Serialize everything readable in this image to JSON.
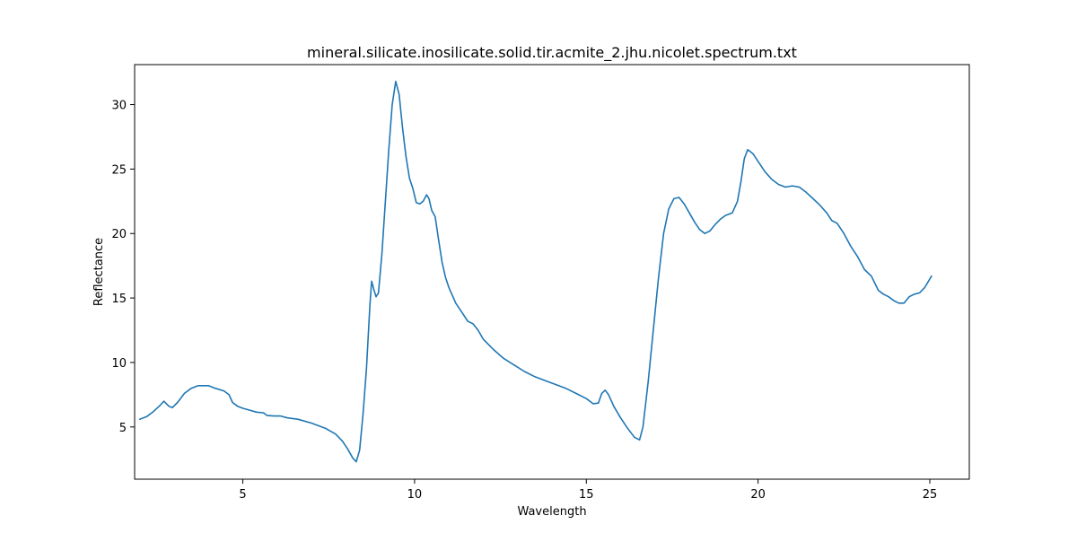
{
  "chart_data": {
    "type": "line",
    "title": "mineral.silicate.inosilicate.solid.tir.acmite_2.jhu.nicolet.spectrum.txt",
    "xlabel": "Wavelength",
    "ylabel": "Reflectance",
    "xlim": [
      1.85,
      26.15
    ],
    "ylim": [
      0.95,
      33.1
    ],
    "xticks": [
      5,
      10,
      15,
      20,
      25
    ],
    "yticks": [
      5,
      10,
      15,
      20,
      25,
      30
    ],
    "grid": false,
    "line_color": "#1f77b4",
    "series": [
      {
        "points": [
          [
            2.0,
            5.6
          ],
          [
            2.2,
            5.8
          ],
          [
            2.4,
            6.2
          ],
          [
            2.6,
            6.7
          ],
          [
            2.7,
            7.0
          ],
          [
            2.85,
            6.6
          ],
          [
            2.95,
            6.5
          ],
          [
            3.1,
            6.9
          ],
          [
            3.3,
            7.6
          ],
          [
            3.5,
            8.0
          ],
          [
            3.7,
            8.2
          ],
          [
            4.0,
            8.2
          ],
          [
            4.2,
            8.0
          ],
          [
            4.45,
            7.8
          ],
          [
            4.6,
            7.5
          ],
          [
            4.7,
            6.9
          ],
          [
            4.85,
            6.6
          ],
          [
            5.0,
            6.45
          ],
          [
            5.2,
            6.3
          ],
          [
            5.4,
            6.15
          ],
          [
            5.6,
            6.1
          ],
          [
            5.7,
            5.9
          ],
          [
            5.9,
            5.85
          ],
          [
            6.1,
            5.85
          ],
          [
            6.3,
            5.7
          ],
          [
            6.6,
            5.6
          ],
          [
            7.0,
            5.3
          ],
          [
            7.4,
            4.9
          ],
          [
            7.7,
            4.45
          ],
          [
            7.9,
            3.9
          ],
          [
            8.05,
            3.3
          ],
          [
            8.2,
            2.6
          ],
          [
            8.3,
            2.3
          ],
          [
            8.4,
            3.2
          ],
          [
            8.5,
            6.0
          ],
          [
            8.6,
            9.5
          ],
          [
            8.7,
            14.5
          ],
          [
            8.75,
            16.3
          ],
          [
            8.82,
            15.6
          ],
          [
            8.88,
            15.1
          ],
          [
            8.95,
            15.4
          ],
          [
            9.05,
            18.5
          ],
          [
            9.15,
            22.5
          ],
          [
            9.25,
            26.5
          ],
          [
            9.35,
            30.0
          ],
          [
            9.45,
            31.8
          ],
          [
            9.55,
            30.8
          ],
          [
            9.65,
            28.2
          ],
          [
            9.75,
            26.0
          ],
          [
            9.85,
            24.3
          ],
          [
            9.95,
            23.5
          ],
          [
            10.05,
            22.4
          ],
          [
            10.15,
            22.3
          ],
          [
            10.25,
            22.5
          ],
          [
            10.35,
            23.0
          ],
          [
            10.42,
            22.7
          ],
          [
            10.5,
            21.8
          ],
          [
            10.6,
            21.3
          ],
          [
            10.7,
            19.5
          ],
          [
            10.8,
            17.8
          ],
          [
            10.9,
            16.6
          ],
          [
            11.0,
            15.8
          ],
          [
            11.2,
            14.6
          ],
          [
            11.4,
            13.8
          ],
          [
            11.55,
            13.2
          ],
          [
            11.7,
            13.0
          ],
          [
            11.85,
            12.5
          ],
          [
            12.0,
            11.8
          ],
          [
            12.3,
            11.0
          ],
          [
            12.6,
            10.3
          ],
          [
            12.9,
            9.8
          ],
          [
            13.2,
            9.3
          ],
          [
            13.5,
            8.9
          ],
          [
            13.8,
            8.6
          ],
          [
            14.1,
            8.3
          ],
          [
            14.4,
            8.0
          ],
          [
            14.7,
            7.6
          ],
          [
            15.0,
            7.2
          ],
          [
            15.2,
            6.8
          ],
          [
            15.35,
            6.85
          ],
          [
            15.45,
            7.6
          ],
          [
            15.55,
            7.85
          ],
          [
            15.65,
            7.5
          ],
          [
            15.8,
            6.6
          ],
          [
            16.0,
            5.7
          ],
          [
            16.2,
            4.9
          ],
          [
            16.4,
            4.2
          ],
          [
            16.55,
            4.0
          ],
          [
            16.65,
            5.0
          ],
          [
            16.8,
            8.5
          ],
          [
            16.95,
            12.5
          ],
          [
            17.1,
            16.5
          ],
          [
            17.25,
            20.0
          ],
          [
            17.4,
            21.9
          ],
          [
            17.55,
            22.7
          ],
          [
            17.7,
            22.8
          ],
          [
            17.85,
            22.3
          ],
          [
            18.0,
            21.6
          ],
          [
            18.15,
            20.9
          ],
          [
            18.3,
            20.3
          ],
          [
            18.45,
            20.0
          ],
          [
            18.6,
            20.2
          ],
          [
            18.75,
            20.7
          ],
          [
            18.9,
            21.1
          ],
          [
            19.05,
            21.4
          ],
          [
            19.25,
            21.6
          ],
          [
            19.4,
            22.5
          ],
          [
            19.5,
            24.0
          ],
          [
            19.6,
            25.8
          ],
          [
            19.7,
            26.5
          ],
          [
            19.85,
            26.2
          ],
          [
            20.0,
            25.6
          ],
          [
            20.2,
            24.8
          ],
          [
            20.4,
            24.2
          ],
          [
            20.6,
            23.8
          ],
          [
            20.8,
            23.6
          ],
          [
            21.0,
            23.7
          ],
          [
            21.2,
            23.6
          ],
          [
            21.4,
            23.2
          ],
          [
            21.6,
            22.7
          ],
          [
            21.8,
            22.2
          ],
          [
            22.0,
            21.6
          ],
          [
            22.15,
            21.0
          ],
          [
            22.3,
            20.8
          ],
          [
            22.5,
            20.0
          ],
          [
            22.7,
            19.0
          ],
          [
            22.9,
            18.2
          ],
          [
            23.1,
            17.2
          ],
          [
            23.3,
            16.7
          ],
          [
            23.5,
            15.6
          ],
          [
            23.65,
            15.3
          ],
          [
            23.8,
            15.1
          ],
          [
            23.95,
            14.8
          ],
          [
            24.1,
            14.6
          ],
          [
            24.25,
            14.6
          ],
          [
            24.4,
            15.1
          ],
          [
            24.55,
            15.3
          ],
          [
            24.7,
            15.4
          ],
          [
            24.85,
            15.8
          ],
          [
            25.05,
            16.7
          ]
        ]
      }
    ]
  }
}
